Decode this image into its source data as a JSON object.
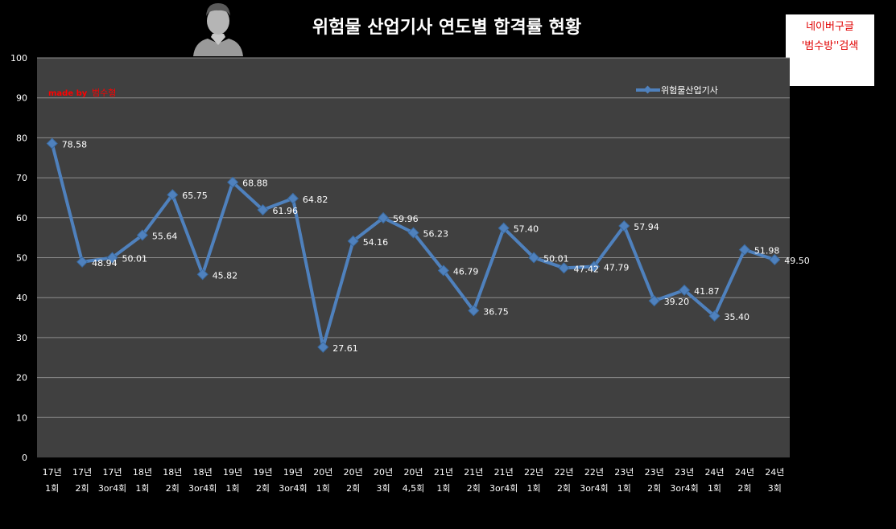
{
  "watermark": {
    "prefix": "made by",
    "name": "범수형"
  },
  "badge": {
    "line1": "네이버구글",
    "line2": "'범수방''검색"
  },
  "colors": {
    "background": "#000000",
    "plot_area": "#404040",
    "gridline": "#8c8c8c",
    "series": "#4f81bd",
    "badge_text": "#e00000",
    "watermark_text": "#ff0000"
  },
  "chart_data": {
    "type": "line",
    "title": "위험물 산업기사 연도별 합격률 현황",
    "xlabel": "",
    "ylabel": "",
    "ylim": [
      0,
      100
    ],
    "yticks": [
      0,
      10,
      20,
      30,
      40,
      50,
      60,
      70,
      80,
      90,
      100
    ],
    "grid": true,
    "legend_position": "top-right",
    "categories": [
      [
        "17년",
        "1회"
      ],
      [
        "17년",
        "2회"
      ],
      [
        "17년",
        "3or4회"
      ],
      [
        "18년",
        "1회"
      ],
      [
        "18년",
        "2회"
      ],
      [
        "18년",
        "3or4회"
      ],
      [
        "19년",
        "1회"
      ],
      [
        "19년",
        "2회"
      ],
      [
        "19년",
        "3or4회"
      ],
      [
        "20년",
        "1회"
      ],
      [
        "20년",
        "2회"
      ],
      [
        "20년",
        "3회"
      ],
      [
        "20년",
        "4,5회"
      ],
      [
        "21년",
        "1회"
      ],
      [
        "21년",
        "2회"
      ],
      [
        "21년",
        "3or4회"
      ],
      [
        "22년",
        "1회"
      ],
      [
        "22년",
        "2회"
      ],
      [
        "22년",
        "3or4회"
      ],
      [
        "23년",
        "1회"
      ],
      [
        "23년",
        "2회"
      ],
      [
        "23년",
        "3or4회"
      ],
      [
        "24년",
        "1회"
      ],
      [
        "24년",
        "2회"
      ],
      [
        "24년",
        "3회"
      ]
    ],
    "series": [
      {
        "name": "위험물산업기사",
        "values": [
          78.58,
          48.94,
          50.01,
          55.64,
          65.75,
          45.82,
          68.88,
          61.96,
          64.82,
          27.61,
          54.16,
          59.96,
          56.23,
          46.79,
          36.75,
          57.4,
          50.01,
          47.42,
          47.79,
          57.94,
          39.2,
          41.87,
          35.4,
          51.98,
          49.5
        ],
        "labels": [
          "78.58",
          "48.94",
          "50.01",
          "55.64",
          "65.75",
          "45.82",
          "68.88",
          "61.96",
          "64.82",
          "27.61",
          "54.16",
          "59.96",
          "56.23",
          "46.79",
          "36.75",
          "57.40",
          "50.01",
          "47.42",
          "47.79",
          "57.94",
          "39.20",
          "41.87",
          "35.40",
          "51.98",
          "49.50"
        ]
      }
    ]
  }
}
